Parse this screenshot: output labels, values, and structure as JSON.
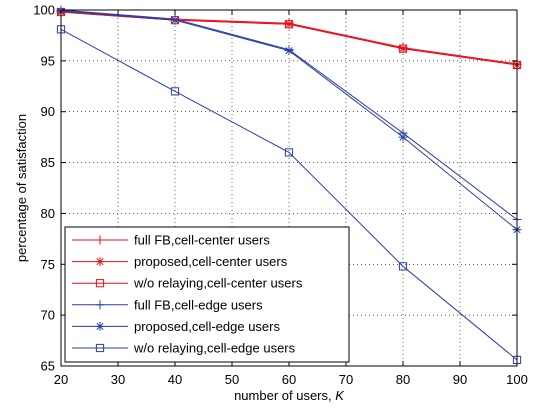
{
  "chart_data": {
    "type": "line",
    "title": "",
    "xlabel": "number of users, ",
    "xlabel_italic": "K",
    "ylabel": "percentage of satisfaction",
    "xlim": [
      20,
      100
    ],
    "ylim": [
      65,
      100
    ],
    "xticks": [
      "20",
      "30",
      "40",
      "50",
      "60",
      "70",
      "80",
      "90",
      "100"
    ],
    "yticks": [
      "65",
      "70",
      "75",
      "80",
      "85",
      "90",
      "95",
      "100"
    ],
    "grid": true,
    "grid_style": "dotted",
    "legend_position": "bottom-left",
    "series": [
      {
        "name": "full FB,cell-center users",
        "color": "#e8101a",
        "marker": "plus",
        "x": [
          20,
          40,
          60,
          80,
          100
        ],
        "y": [
          99.9,
          99.1,
          98.7,
          96.3,
          94.7
        ]
      },
      {
        "name": "proposed,cell-center users",
        "color": "#e8101a",
        "marker": "star",
        "x": [
          20,
          40,
          60,
          80,
          100
        ],
        "y": [
          99.8,
          99.0,
          98.6,
          96.2,
          94.6
        ]
      },
      {
        "name": "w/o relaying,cell-center users",
        "color": "#e8101a",
        "marker": "square",
        "x": [
          20,
          40,
          60,
          80,
          100
        ],
        "y": [
          99.8,
          99.0,
          98.6,
          96.2,
          94.6
        ]
      },
      {
        "name": "full FB,cell-edge users",
        "color": "#2a3fa8",
        "marker": "plus",
        "x": [
          20,
          40,
          60,
          80,
          100
        ],
        "y": [
          100.0,
          99.1,
          96.1,
          87.9,
          79.4
        ]
      },
      {
        "name": "proposed,cell-edge users",
        "color": "#2a3fa8",
        "marker": "star",
        "x": [
          20,
          40,
          60,
          80,
          100
        ],
        "y": [
          99.9,
          99.0,
          96.0,
          87.5,
          78.4
        ]
      },
      {
        "name": "w/o relaying,cell-edge users",
        "color": "#2a3fa8",
        "marker": "square",
        "x": [
          20,
          40,
          60,
          80,
          100
        ],
        "y": [
          98.1,
          92.0,
          86.0,
          74.8,
          65.6
        ]
      }
    ]
  }
}
